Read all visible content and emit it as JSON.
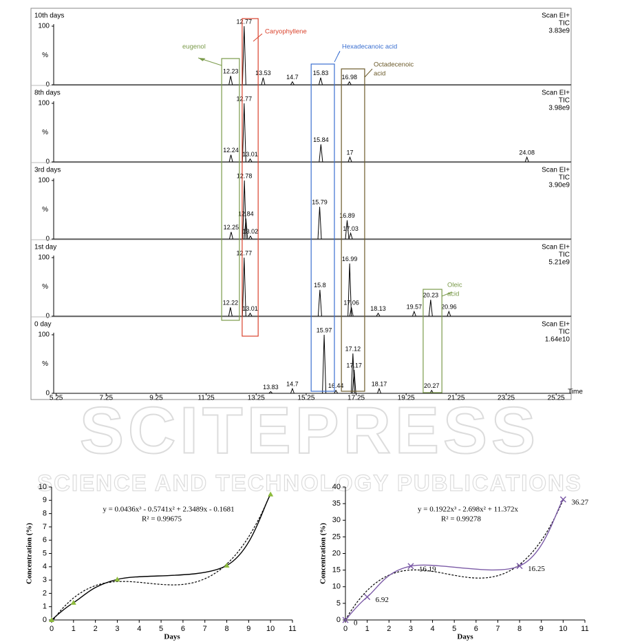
{
  "chart_data": [
    {
      "type": "chromatogram",
      "title": "10th days",
      "scan": "Scan EI+",
      "tic": "TIC",
      "intensity": "3.83e9",
      "ylabel": "%",
      "x": [
        12.23,
        12.77,
        13.53,
        14.7,
        15.83,
        16.98
      ],
      "values": [
        15,
        100,
        12,
        5,
        12,
        5
      ],
      "xlim": [
        5.15,
        25.85
      ],
      "ylim": [
        0,
        100
      ],
      "yticks": [
        0,
        100
      ],
      "color": "#000000"
    },
    {
      "type": "chromatogram",
      "title": "8th days",
      "scan": "Scan EI+",
      "tic": "TIC",
      "intensity": "3.98e9",
      "ylabel": "%",
      "x": [
        12.24,
        12.77,
        13.01,
        15.84,
        17.0,
        24.08
      ],
      "values": [
        12,
        100,
        5,
        30,
        8,
        8
      ],
      "xlim": [
        5.15,
        25.85
      ],
      "ylim": [
        0,
        100
      ],
      "yticks": [
        0,
        100
      ],
      "color": "#000000"
    },
    {
      "type": "chromatogram",
      "title": "3rd days",
      "scan": "Scan EI+",
      "tic": "TIC",
      "intensity": "3.90e9",
      "ylabel": "%",
      "x": [
        12.25,
        12.78,
        12.84,
        13.02,
        15.79,
        16.89,
        17.03
      ],
      "values": [
        12,
        100,
        35,
        5,
        55,
        32,
        10
      ],
      "xlim": [
        5.15,
        25.85
      ],
      "ylim": [
        0,
        100
      ],
      "yticks": [
        0,
        100
      ],
      "color": "#000000"
    },
    {
      "type": "chromatogram",
      "title": "1st day",
      "scan": "Scan EI+",
      "tic": "TIC",
      "intensity": "5.21e9",
      "ylabel": "%",
      "x": [
        12.22,
        12.77,
        13.01,
        15.8,
        16.99,
        17.06,
        18.13,
        19.57,
        20.23,
        20.96
      ],
      "values": [
        15,
        100,
        5,
        45,
        90,
        15,
        5,
        8,
        28,
        8
      ],
      "xlim": [
        5.15,
        25.85
      ],
      "ylim": [
        0,
        100
      ],
      "yticks": [
        0,
        100
      ],
      "color": "#000000"
    },
    {
      "type": "chromatogram",
      "title": "0 day",
      "scan": "Scan EI+",
      "tic": "TIC",
      "intensity": "1.64e10",
      "ylabel": "%",
      "xlabel": "Time",
      "x": [
        13.83,
        14.7,
        15.97,
        16.44,
        17.12,
        17.17,
        18.17,
        20.27
      ],
      "values": [
        3,
        8,
        100,
        5,
        68,
        40,
        8,
        5
      ],
      "xlim": [
        5.15,
        25.85
      ],
      "xticks": [
        5.25,
        7.25,
        9.25,
        11.25,
        13.25,
        15.25,
        17.25,
        19.25,
        21.25,
        23.25,
        25.25
      ],
      "ylim": [
        0,
        100
      ],
      "yticks": [
        0,
        100
      ],
      "color": "#000000"
    },
    {
      "type": "line",
      "xlabel": "Days",
      "ylabel": "Concentration (%)",
      "x": [
        0,
        1,
        3,
        8,
        10
      ],
      "values": [
        0,
        1.3,
        3.05,
        4.1,
        9.45
      ],
      "color": "#000000",
      "marker": "triangle",
      "marker_color": "#8dbb3c",
      "xlim": [
        0,
        11
      ],
      "xticks": [
        0,
        1,
        2,
        3,
        4,
        5,
        6,
        7,
        8,
        9,
        10,
        11
      ],
      "ylim": [
        0,
        10
      ],
      "yticks": [
        0,
        1,
        2,
        3,
        4,
        5,
        6,
        7,
        8,
        9,
        10
      ],
      "trendline": {
        "equation": "y = 0.0436x³ - 0.5741x² + 2.3489x - 0.1681",
        "r_squared": "R² = 0.99675",
        "coefficients": [
          -0.1681,
          2.3489,
          -0.5741,
          0.0436
        ]
      }
    },
    {
      "type": "line",
      "xlabel": "Days",
      "ylabel": "Concentration (%)",
      "data_labels": true,
      "x": [
        0,
        1,
        3,
        8,
        10
      ],
      "values": [
        0,
        6.92,
        16.19,
        16.25,
        36.27
      ],
      "color": "#7b5aa6",
      "marker": "x",
      "marker_color": "#7b5aa6",
      "xlim": [
        0,
        11
      ],
      "xticks": [
        0,
        1,
        2,
        3,
        4,
        5,
        6,
        7,
        8,
        9,
        10,
        11
      ],
      "ylim": [
        0,
        40
      ],
      "yticks": [
        0,
        5,
        10,
        15,
        20,
        25,
        30,
        35,
        40
      ],
      "trendline": {
        "equation": "y = 0.1922x³ - 2.698x² + 11.372x",
        "r_squared": "R² = 0.99278",
        "coefficients": [
          0,
          11.372,
          -2.698,
          0.1922
        ]
      }
    }
  ],
  "annotations": [
    {
      "lines": [
        "eugenol"
      ],
      "color": "#7a9a4a",
      "span": [
        11.87,
        12.58
      ]
    },
    {
      "lines": [
        "Caryophyllene"
      ],
      "color": "#d9412b",
      "span": [
        12.69,
        13.33
      ]
    },
    {
      "lines": [
        "Hexadecanoic acid"
      ],
      "color": "#3a6fd0",
      "span": [
        15.45,
        16.38
      ]
    },
    {
      "lines": [
        "Octadecenoic",
        "acid"
      ],
      "color": "#6b5a2a",
      "span": [
        16.66,
        17.59
      ]
    },
    {
      "lines": [
        "Oleic",
        "acid"
      ],
      "color": "#7a9a4a",
      "span": [
        19.93,
        20.68
      ]
    }
  ],
  "watermark": {
    "title": "SCITEPRESS",
    "subtitle": "SCIENCE AND TECHNOLOGY PUBLICATIONS"
  }
}
